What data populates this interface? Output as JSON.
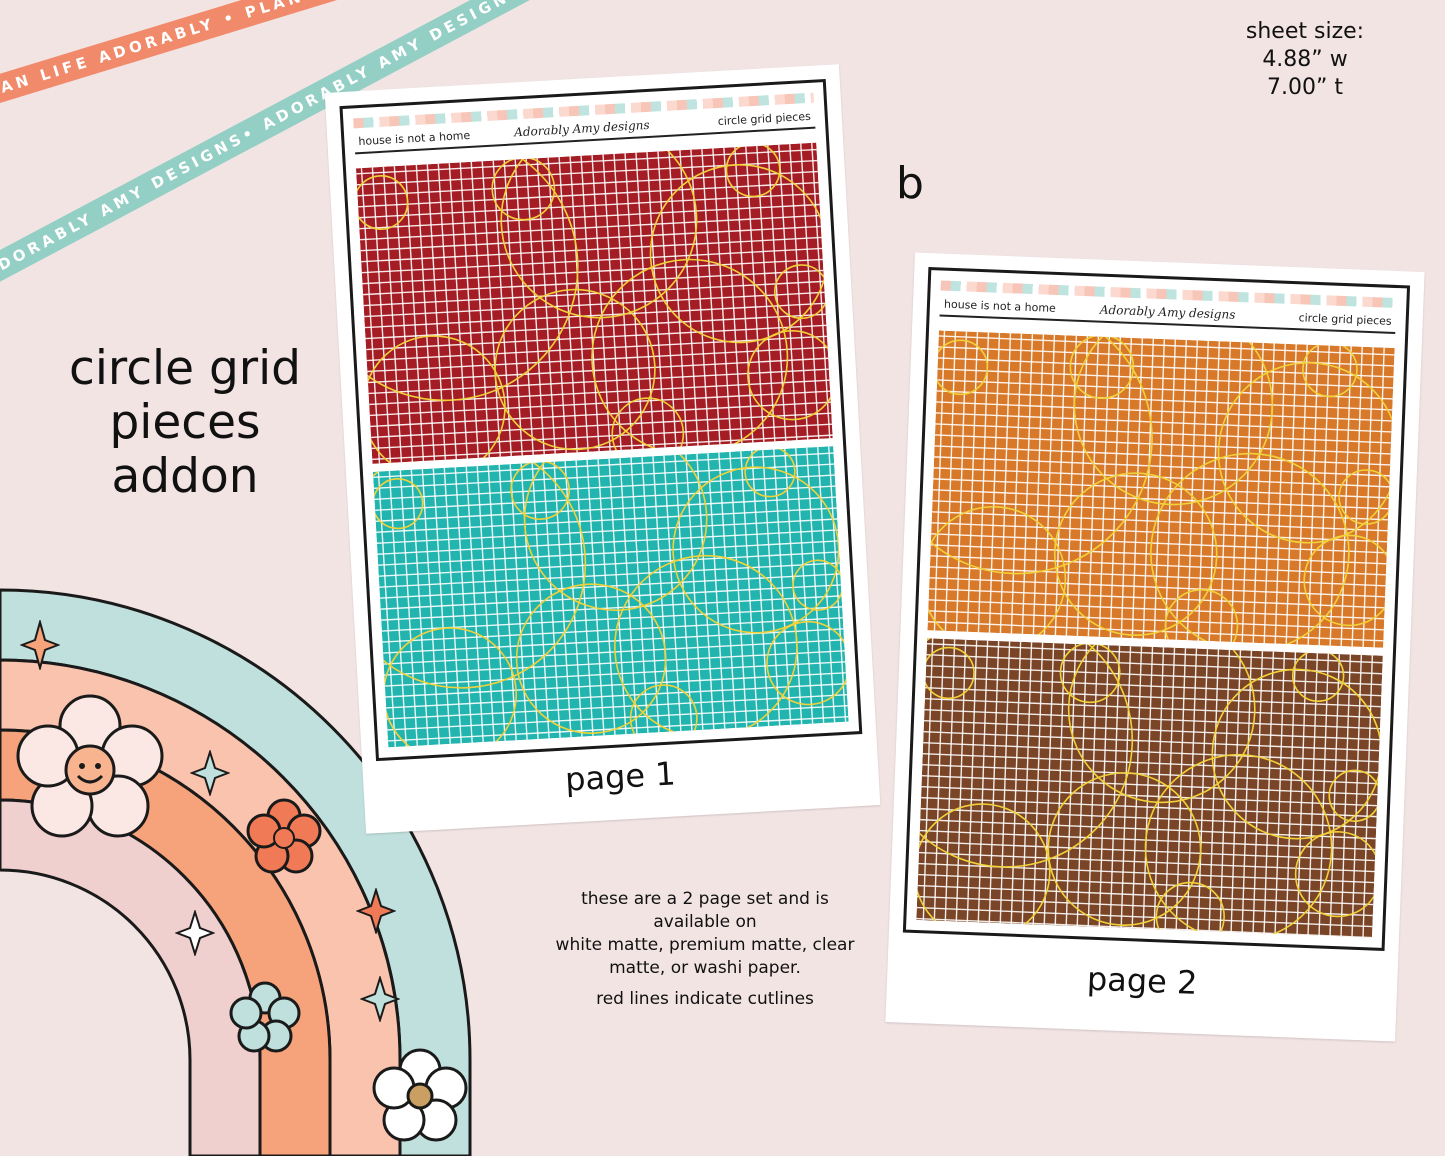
{
  "ribbons": {
    "orange_text": "PLAN LIFE ADORABLY • PLAN LIFE ADORABLY • PLAN LIFE ADORABLY •",
    "mint_text": "ADORABLY AMY DESIGNS• ADORABLY AMY DESIGNS• ADORABLY AMY DESIGNS•",
    "orange_color": "#f08a6a",
    "mint_color": "#93cfc4"
  },
  "sheet_size": {
    "label": "sheet size:",
    "width": "4.88” w",
    "height": "7.00” t"
  },
  "title": {
    "line1": "circle grid",
    "line2": "pieces",
    "line3": "addon"
  },
  "variant_letter": "b",
  "page1": {
    "header_left": "house is not a home",
    "header_logo": "Adorably Amy designs",
    "header_right": "circle grid pieces",
    "caption": "page 1",
    "top_color": "#a51d24",
    "bottom_color": "#22b4ae"
  },
  "page2": {
    "header_left": "house is not a home",
    "header_logo": "Adorably Amy designs",
    "header_right": "circle grid pieces",
    "caption": "page 2",
    "top_color": "#d8792a",
    "bottom_color": "#7a4426"
  },
  "info": {
    "line1": "these are a 2 page set and is available on",
    "line2": "white matte, premium matte, clear matte, or washi paper.",
    "line3": "red lines indicate cutlines"
  },
  "colors": {
    "background": "#f3e4e4",
    "circle_outline": "#f2d23a",
    "rainbow_mint": "#bfe0dc",
    "rainbow_peach": "#f9c3ad",
    "rainbow_orange": "#f6a27b",
    "rainbow_pink": "#f0cfcf"
  }
}
